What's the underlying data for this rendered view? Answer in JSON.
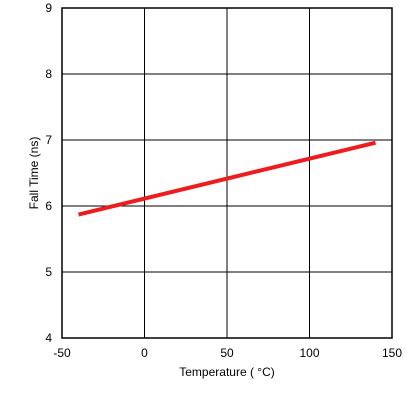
{
  "chart_data": {
    "type": "line",
    "title": "",
    "xlabel": "Temperature ( °C)",
    "ylabel": "Fall Time (ns)",
    "xlim": [
      -50,
      150
    ],
    "ylim": [
      4,
      9
    ],
    "xticks": [
      "-50",
      "0",
      "50",
      "100",
      "150"
    ],
    "yticks": [
      "4",
      "5",
      "6",
      "7",
      "8",
      "9"
    ],
    "grid": true,
    "legend": "none",
    "series": [
      {
        "color": "#ee1c1c",
        "x": [
          -40,
          140
        ],
        "y": [
          5.87,
          6.96
        ]
      }
    ]
  }
}
